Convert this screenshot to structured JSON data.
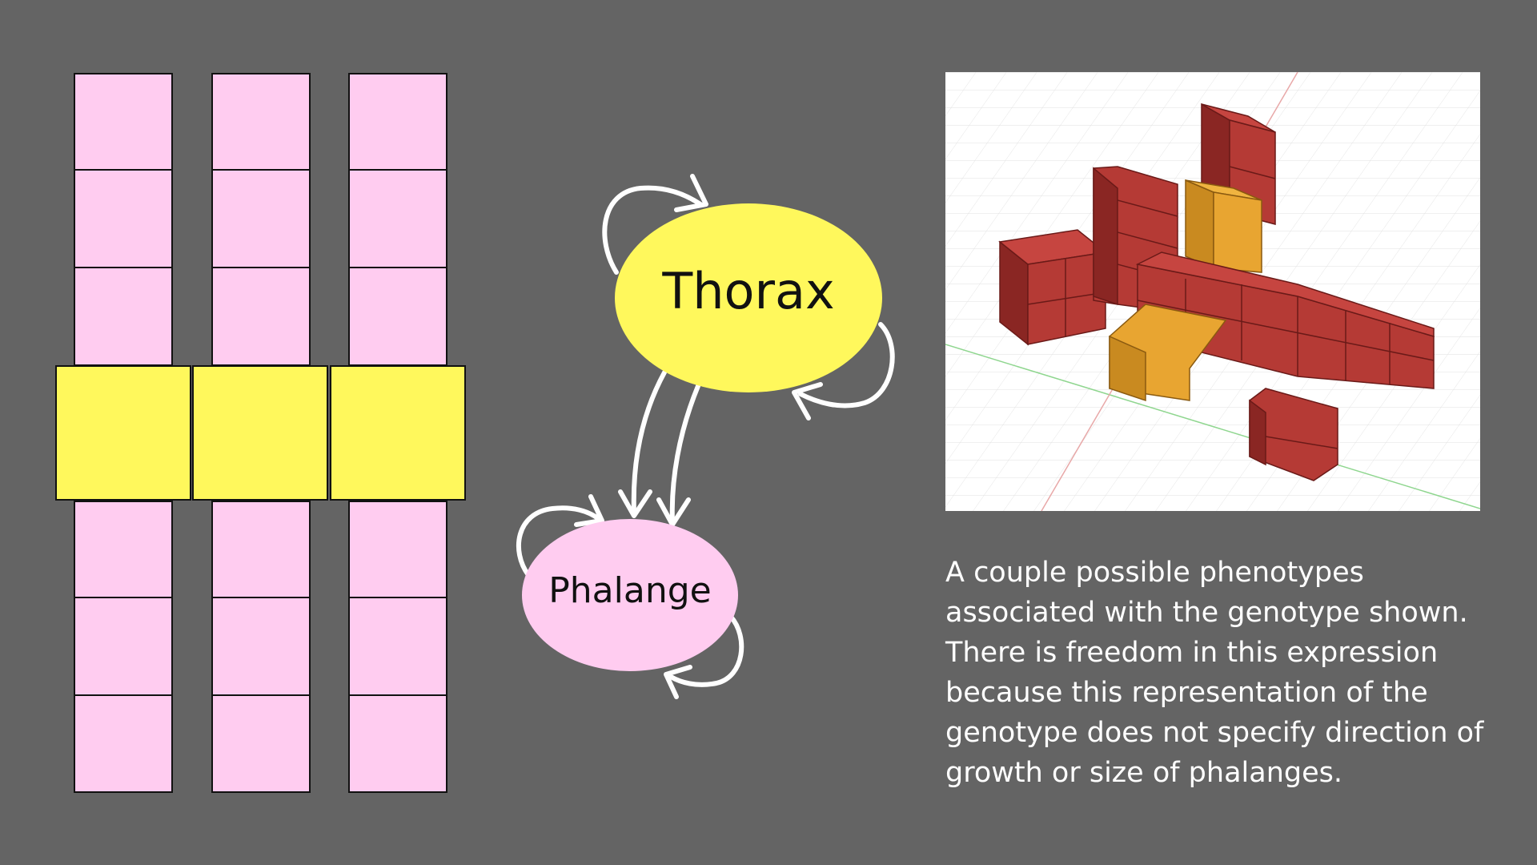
{
  "genotype_diagram": {
    "columns": 3,
    "segments_per_column": [
      "phalange",
      "phalange",
      "phalange",
      "thorax",
      "phalange",
      "phalange",
      "phalange"
    ]
  },
  "graph": {
    "nodes": [
      {
        "id": "thorax",
        "label": "Thorax",
        "color": "#fff85c"
      },
      {
        "id": "phalange",
        "label": "Phalange",
        "color": "#ffccf0"
      }
    ],
    "edges": [
      {
        "from": "thorax",
        "to": "thorax"
      },
      {
        "from": "thorax",
        "to": "thorax"
      },
      {
        "from": "thorax",
        "to": "phalange"
      },
      {
        "from": "thorax",
        "to": "phalange"
      },
      {
        "from": "phalange",
        "to": "phalange"
      },
      {
        "from": "phalange",
        "to": "phalange"
      }
    ]
  },
  "caption": "A couple possible phenotypes associated with the genotype shown. There is freedom in this expression because this representation of the genotype does not specify direction of growth or size of phalanges.",
  "colors": {
    "background": "#646464",
    "phalange": "#ffccf0",
    "thorax": "#fff85c",
    "cube_red": "#b53a35",
    "cube_orange": "#e8a531"
  }
}
